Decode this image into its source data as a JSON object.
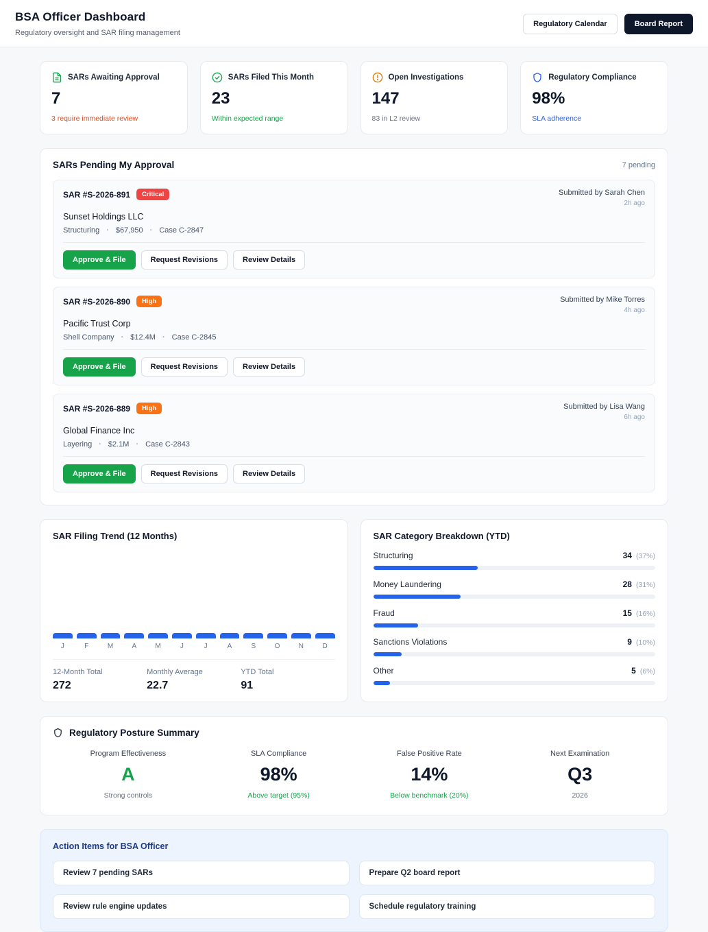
{
  "header": {
    "title": "BSA Officer Dashboard",
    "subtitle": "Regulatory oversight and SAR filing management",
    "calendar_button": "Regulatory Calendar",
    "report_button": "Board Report"
  },
  "stats": [
    {
      "icon": "file-text-icon",
      "label": "SARs Awaiting Approval",
      "value": "7",
      "note": "3 require immediate review"
    },
    {
      "icon": "check-circle-icon",
      "label": "SARs Filed This Month",
      "value": "23",
      "note": "Within expected range"
    },
    {
      "icon": "alert-circle-icon",
      "label": "Open Investigations",
      "value": "147",
      "note": "83 in L2 review"
    },
    {
      "icon": "shield-icon",
      "label": "Regulatory Compliance",
      "value": "98%",
      "note": "SLA adherence"
    }
  ],
  "pending": {
    "title": "SARs Pending My Approval",
    "count_label": "7 pending",
    "approve_label": "Approve & File",
    "revise_label": "Request Revisions",
    "review_label": "Review Details",
    "cards": [
      {
        "id": "SAR #S-2026-891",
        "severity": "Critical",
        "company": "Sunset Holdings LLC",
        "category": "Structuring",
        "amount": "$67,950",
        "case_ref": "Case C-2847",
        "submitted_by": "Submitted by Sarah Chen",
        "time_ago": "2h ago"
      },
      {
        "id": "SAR #S-2026-890",
        "severity": "High",
        "company": "Pacific Trust Corp",
        "category": "Shell Company",
        "amount": "$12.4M",
        "case_ref": "Case C-2845",
        "submitted_by": "Submitted by Mike Torres",
        "time_ago": "4h ago"
      },
      {
        "id": "SAR #S-2026-889",
        "severity": "High",
        "company": "Global Finance Inc",
        "category": "Layering",
        "amount": "$2.1M",
        "case_ref": "Case C-2843",
        "submitted_by": "Submitted by Lisa Wang",
        "time_ago": "6h ago"
      }
    ]
  },
  "chart_data": [
    {
      "type": "bar",
      "title": "SAR Filing Trend (12 Months)",
      "categories": [
        "J",
        "F",
        "M",
        "A",
        "M",
        "J",
        "J",
        "A",
        "S",
        "O",
        "N",
        "D"
      ],
      "values": [
        22.7,
        22.7,
        22.7,
        22.7,
        22.7,
        22.7,
        22.7,
        22.7,
        22.7,
        22.7,
        22.7,
        22.7
      ],
      "display_note": "all 12 bars render at uniform minimal height at the axis baseline",
      "bar_color": "#2563eb",
      "xlabel": "",
      "ylabel": "",
      "summary": [
        {
          "label": "12-Month Total",
          "value": "272"
        },
        {
          "label": "Monthly Average",
          "value": "22.7"
        },
        {
          "label": "YTD Total",
          "value": "91"
        }
      ]
    },
    {
      "type": "bar",
      "title": "SAR Category Breakdown (YTD)",
      "categories": [
        "Structuring",
        "Money Laundering",
        "Fraud",
        "Sanctions Violations",
        "Other"
      ],
      "values": [
        34,
        28,
        15,
        9,
        5
      ],
      "pcts": [
        37,
        31,
        16,
        10,
        6
      ],
      "pct_labels": [
        "(37%)",
        "(31%)",
        "(16%)",
        "(10%)",
        "(6%)"
      ],
      "bar_color": "#2563eb"
    }
  ],
  "posture": {
    "title": "Regulatory Posture Summary",
    "metrics": [
      {
        "label": "Program Effectiveness",
        "value": "A",
        "note": "Strong controls"
      },
      {
        "label": "SLA Compliance",
        "value": "98%",
        "note": "Above target (95%)"
      },
      {
        "label": "False Positive Rate",
        "value": "14%",
        "note": "Below benchmark (20%)"
      },
      {
        "label": "Next Examination",
        "value": "Q3",
        "note": "2026"
      }
    ]
  },
  "action_items": {
    "title": "Action Items for BSA Officer",
    "items": [
      "Review 7 pending SARs",
      "Prepare Q2 board report",
      "Review rule engine updates",
      "Schedule regulatory training"
    ]
  },
  "colors": {
    "accent_blue": "#2563eb",
    "green": "#16a34a",
    "critical_red": "#ef4444",
    "high_orange": "#f97316",
    "alert_amber": "#d97706",
    "navy_button": "#0f172a",
    "action_panel_blue": "#edf4fe"
  }
}
